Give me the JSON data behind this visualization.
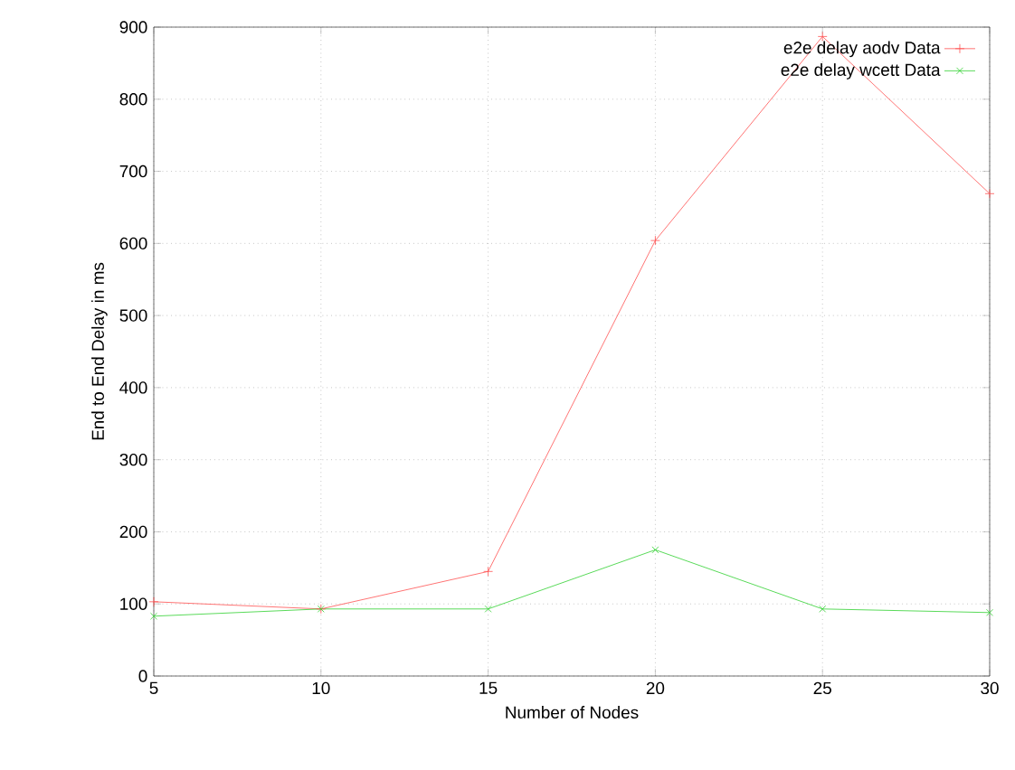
{
  "chart_data": {
    "type": "line",
    "xlabel": "Number of Nodes",
    "ylabel": "End to End Delay in ms",
    "x": [
      5,
      10,
      15,
      20,
      25,
      30
    ],
    "series": [
      {
        "name": "e2e delay aodv   Data",
        "color": "#ff5050",
        "marker": "plus",
        "values": [
          103,
          93,
          145,
          604,
          887,
          669
        ]
      },
      {
        "name": "e2e delay wcett   Data",
        "color": "#30d030",
        "marker": "cross",
        "values": [
          83,
          93,
          93,
          175,
          93,
          88
        ]
      }
    ],
    "xlim": [
      5,
      30
    ],
    "xticks": [
      5,
      10,
      15,
      20,
      25,
      30
    ],
    "ylim": [
      0,
      900
    ],
    "yticks": [
      0,
      100,
      200,
      300,
      400,
      500,
      600,
      700,
      800,
      900
    ],
    "grid": true,
    "legend": "top right",
    "line_style": "solid"
  }
}
